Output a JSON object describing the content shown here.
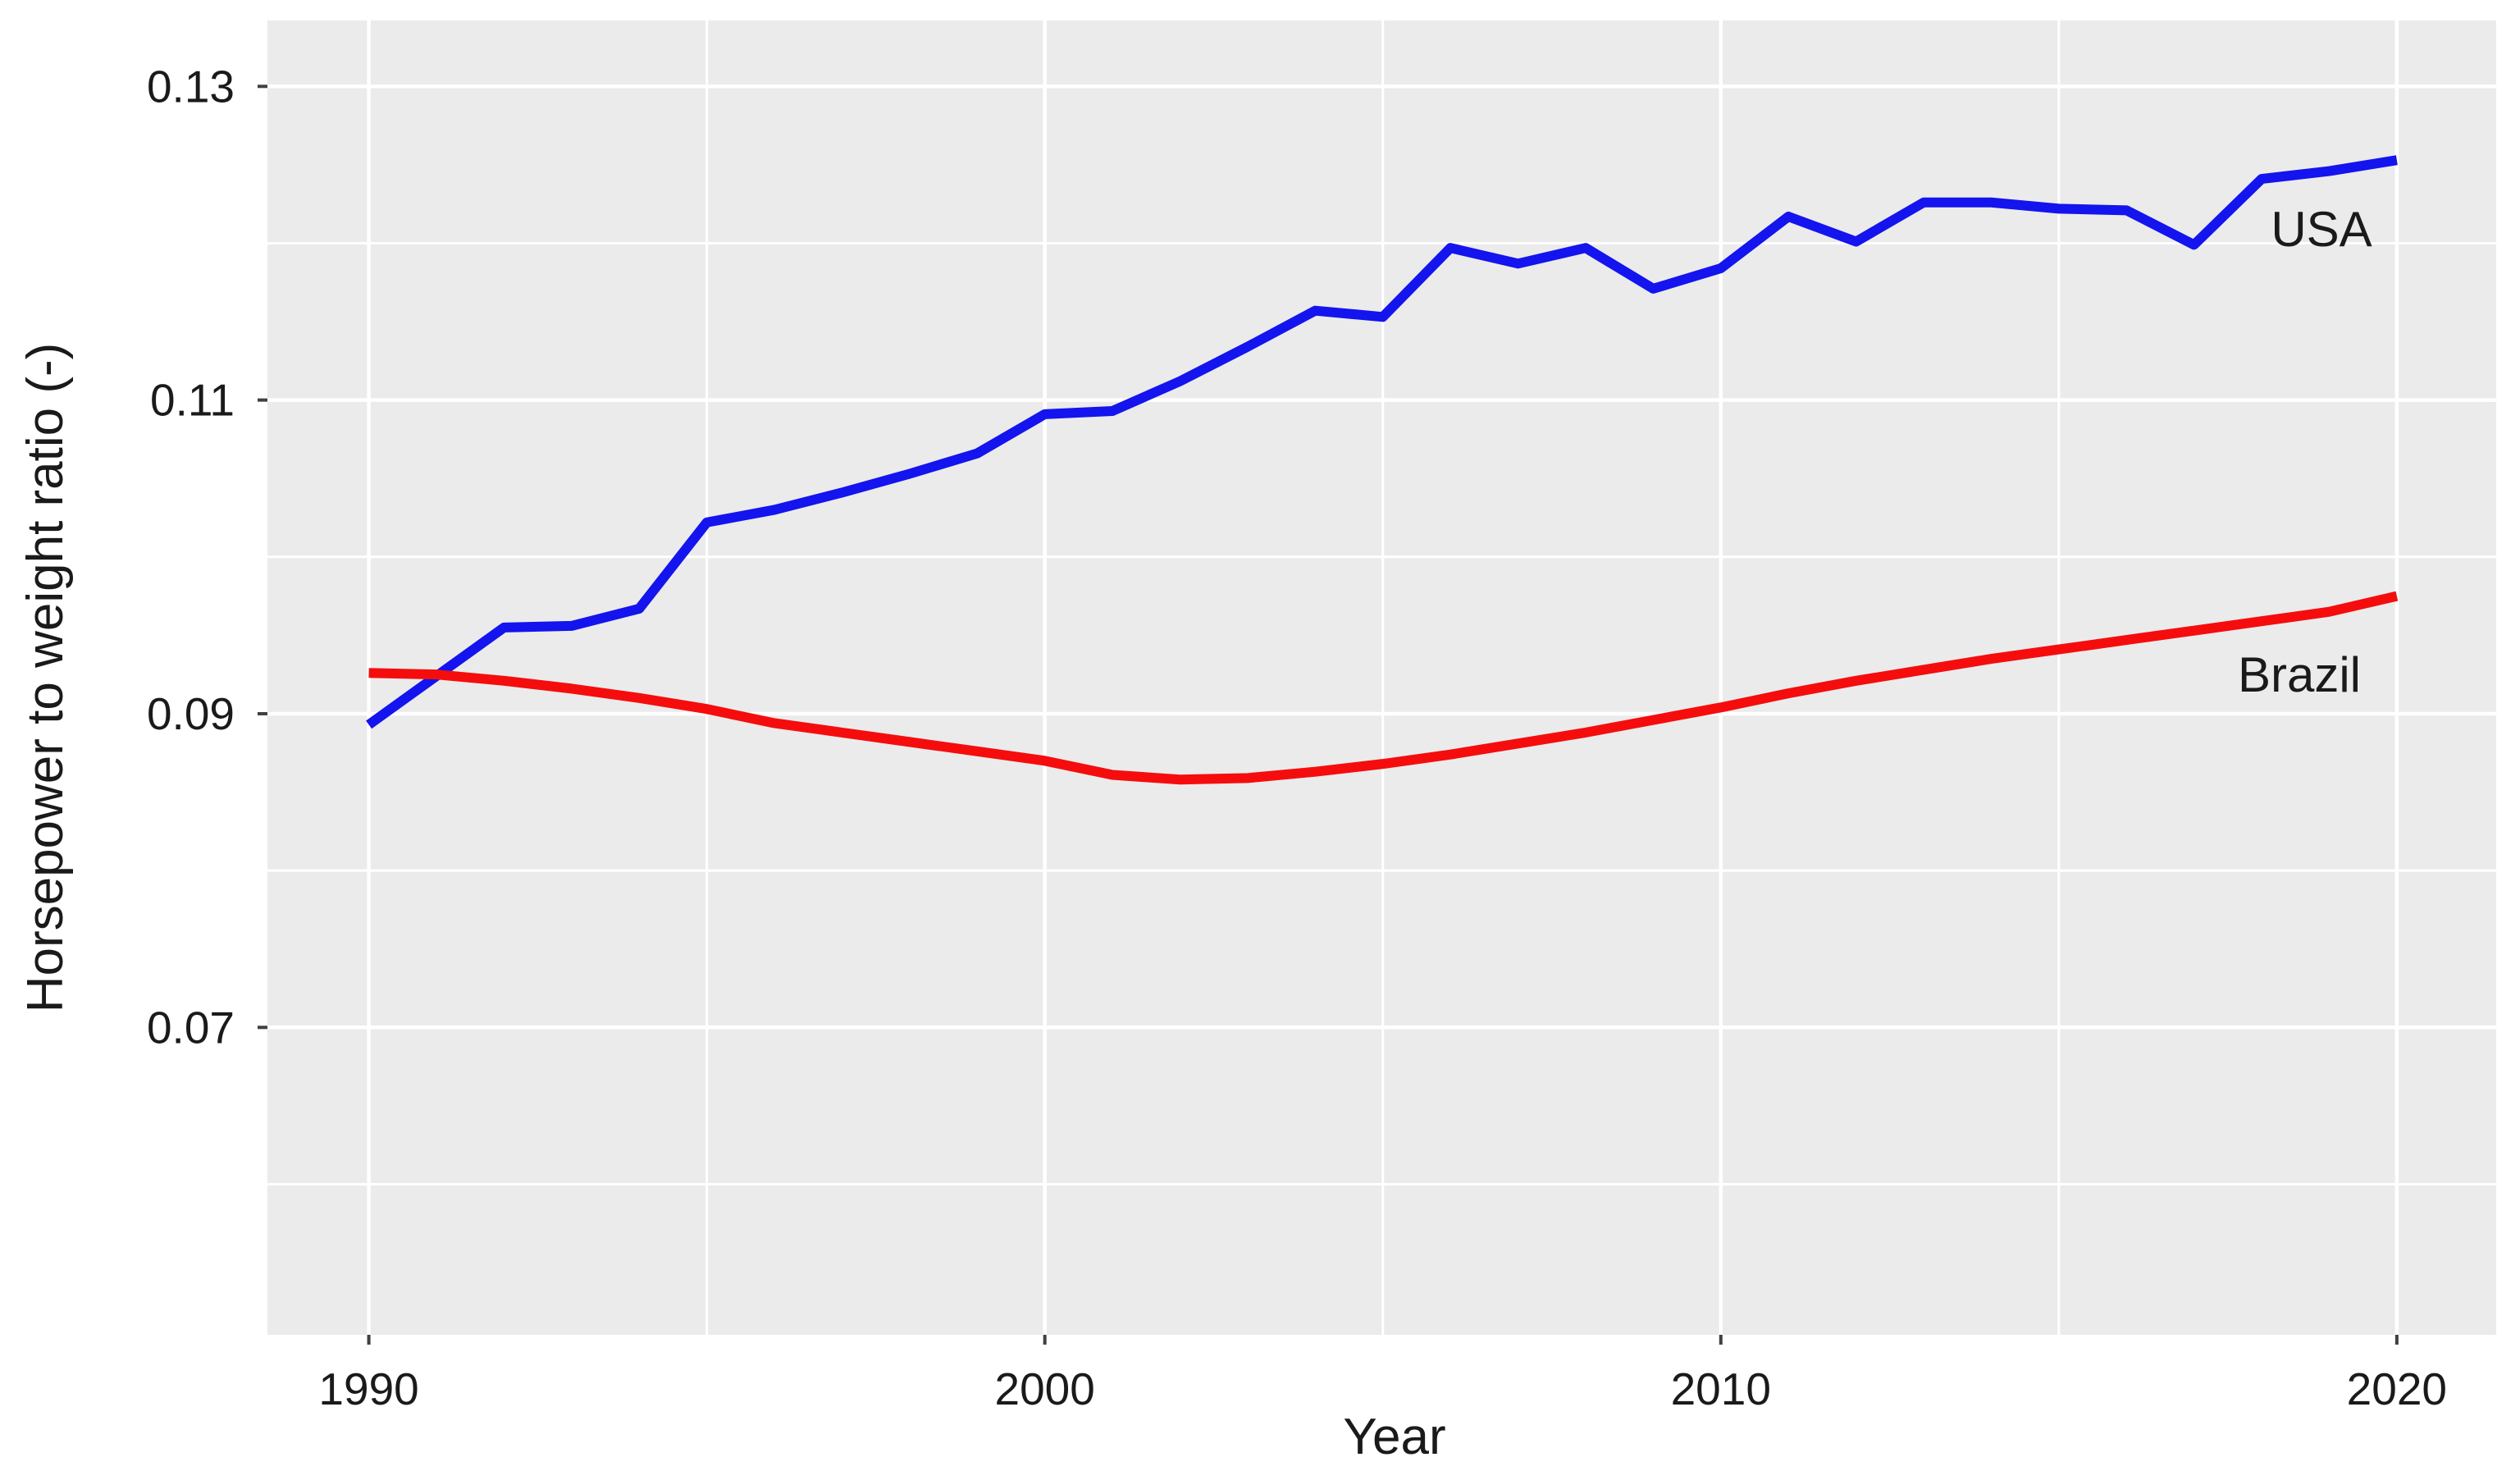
{
  "colors": {
    "panel_background": "#ebebeb",
    "gridline": "#ffffff",
    "tick_mark": "#404040",
    "text": "#1a1a1a",
    "usa_line": "#1414ee",
    "brazil_line": "#f50d0d"
  },
  "chart_data": {
    "type": "line",
    "title": "",
    "xlabel": "Year",
    "ylabel": "Horsepower to weight ratio (-)",
    "xlim": [
      1988.5,
      2021.47
    ],
    "ylim": [
      0.0504,
      0.1342
    ],
    "grid": "on",
    "legend_position": "inline-annotations",
    "x_major_ticks": [
      1990,
      2000,
      2010,
      2020
    ],
    "x_tick_labels": [
      "1990",
      "2000",
      "2010",
      "2020"
    ],
    "x_minor_gridlines": [
      1995,
      2005,
      2015
    ],
    "y_major_ticks": [
      0.13,
      0.11,
      0.09,
      0.07
    ],
    "y_tick_labels": [
      "0.13",
      "0.11",
      "0.09",
      "0.07"
    ],
    "y_minor_gridlines": [
      0.06,
      0.08,
      0.1,
      0.12
    ],
    "x": [
      1990,
      1991,
      1992,
      1993,
      1994,
      1995,
      1996,
      1997,
      1998,
      1999,
      2000,
      2001,
      2002,
      2003,
      2004,
      2005,
      2006,
      2007,
      2008,
      2009,
      2010,
      2011,
      2012,
      2013,
      2014,
      2015,
      2016,
      2017,
      2018,
      2019,
      2020
    ],
    "series": [
      {
        "name": "USA",
        "color": "#1414ee",
        "values": [
          0.0893,
          0.0924,
          0.0955,
          0.0956,
          0.0967,
          0.1022,
          0.103,
          0.1041,
          0.1053,
          0.1066,
          0.1091,
          0.1093,
          0.1112,
          0.1134,
          0.1157,
          0.1153,
          0.1197,
          0.1187,
          0.1197,
          0.1171,
          0.1184,
          0.1217,
          0.1201,
          0.1226,
          0.1226,
          0.1222,
          0.1221,
          0.1199,
          0.1241,
          0.1246,
          0.1253
        ]
      },
      {
        "name": "Brazil",
        "color": "#f50d0d",
        "values": [
          0.0926,
          0.0925,
          0.0921,
          0.0916,
          0.091,
          0.0903,
          0.0894,
          0.0888,
          0.0882,
          0.0876,
          0.087,
          0.0861,
          0.0858,
          0.0859,
          0.0863,
          0.0868,
          0.0874,
          0.0881,
          0.0888,
          0.0896,
          0.0904,
          0.0913,
          0.0921,
          0.0928,
          0.0935,
          0.0941,
          0.0947,
          0.0953,
          0.0959,
          0.0965,
          0.0975
        ]
      }
    ],
    "annotations": {
      "usa_label": "USA",
      "brazil_label": "Brazil"
    }
  }
}
